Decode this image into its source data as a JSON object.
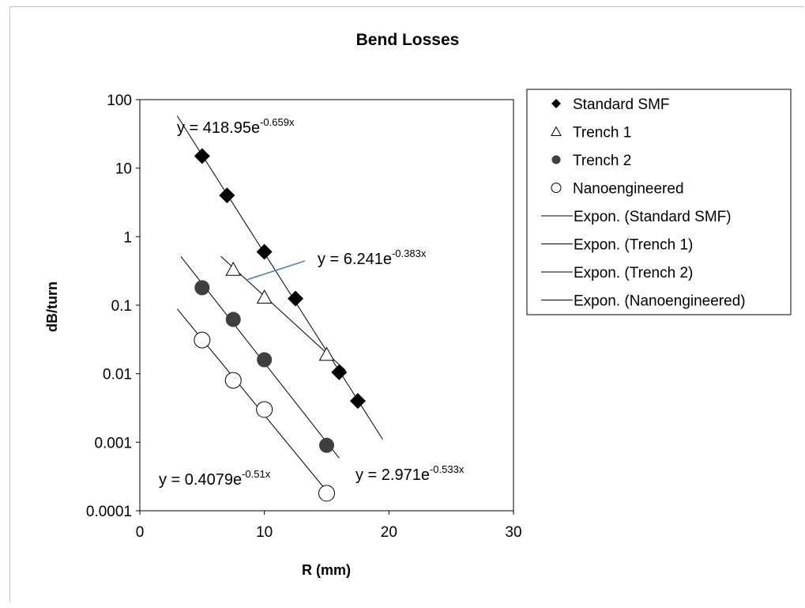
{
  "chart_data": {
    "type": "scatter",
    "title": "Bend Losses",
    "xlabel": "R (mm)",
    "ylabel": "dB/turn",
    "xlim": [
      0,
      30
    ],
    "ylim": [
      0.0001,
      100
    ],
    "y_scale": "log",
    "x_ticks": [
      "0",
      "10",
      "20",
      "30"
    ],
    "y_ticks": [
      "0.0001",
      "0.001",
      "0.01",
      "0.1",
      "1",
      "10",
      "100"
    ],
    "legend_position": "right",
    "series": [
      {
        "name": "Standard SMF",
        "marker": "filled-diamond",
        "x": [
          5,
          7,
          10,
          12.5,
          16,
          17.5
        ],
        "y": [
          15,
          4,
          0.6,
          0.125,
          0.0105,
          0.004
        ],
        "trend_name": "Expon. (Standard SMF)",
        "trend": {
          "a": 418.95,
          "b": -0.659,
          "x_range": [
            3,
            19.5
          ]
        },
        "equation": {
          "prefix": "y = 418.95e",
          "exponent": "-0.659x"
        }
      },
      {
        "name": "Trench 1",
        "marker": "open-triangle",
        "x": [
          7.5,
          10,
          15
        ],
        "y": [
          0.33,
          0.13,
          0.019
        ],
        "trend_name": "Expon. (Trench 1)",
        "trend": {
          "a": 6.241,
          "b": -0.383,
          "x_range": [
            6.5,
            16.5
          ]
        },
        "equation": {
          "prefix": "y = 6.241e",
          "exponent": "-0.383x"
        }
      },
      {
        "name": "Trench 2",
        "marker": "filled-circle",
        "x": [
          5,
          7.5,
          10,
          15
        ],
        "y": [
          0.18,
          0.062,
          0.016,
          0.0009
        ],
        "trend_name": "Expon. (Trench 2)",
        "trend": {
          "a": 2.971,
          "b": -0.533,
          "x_range": [
            3.3,
            16
          ]
        },
        "equation": {
          "prefix": "y = 2.971e",
          "exponent": "-0.533x"
        }
      },
      {
        "name": "Nanoengineered",
        "marker": "open-circle",
        "x": [
          5,
          7.5,
          10,
          15
        ],
        "y": [
          0.031,
          0.008,
          0.003,
          0.00018
        ],
        "trend_name": "Expon. (Nanoengineered)",
        "trend": {
          "a": 0.4079,
          "b": -0.51,
          "x_range": [
            3,
            15.5
          ]
        },
        "equation": {
          "prefix": "y = 0.4079e",
          "exponent": "-0.51x"
        }
      }
    ]
  }
}
